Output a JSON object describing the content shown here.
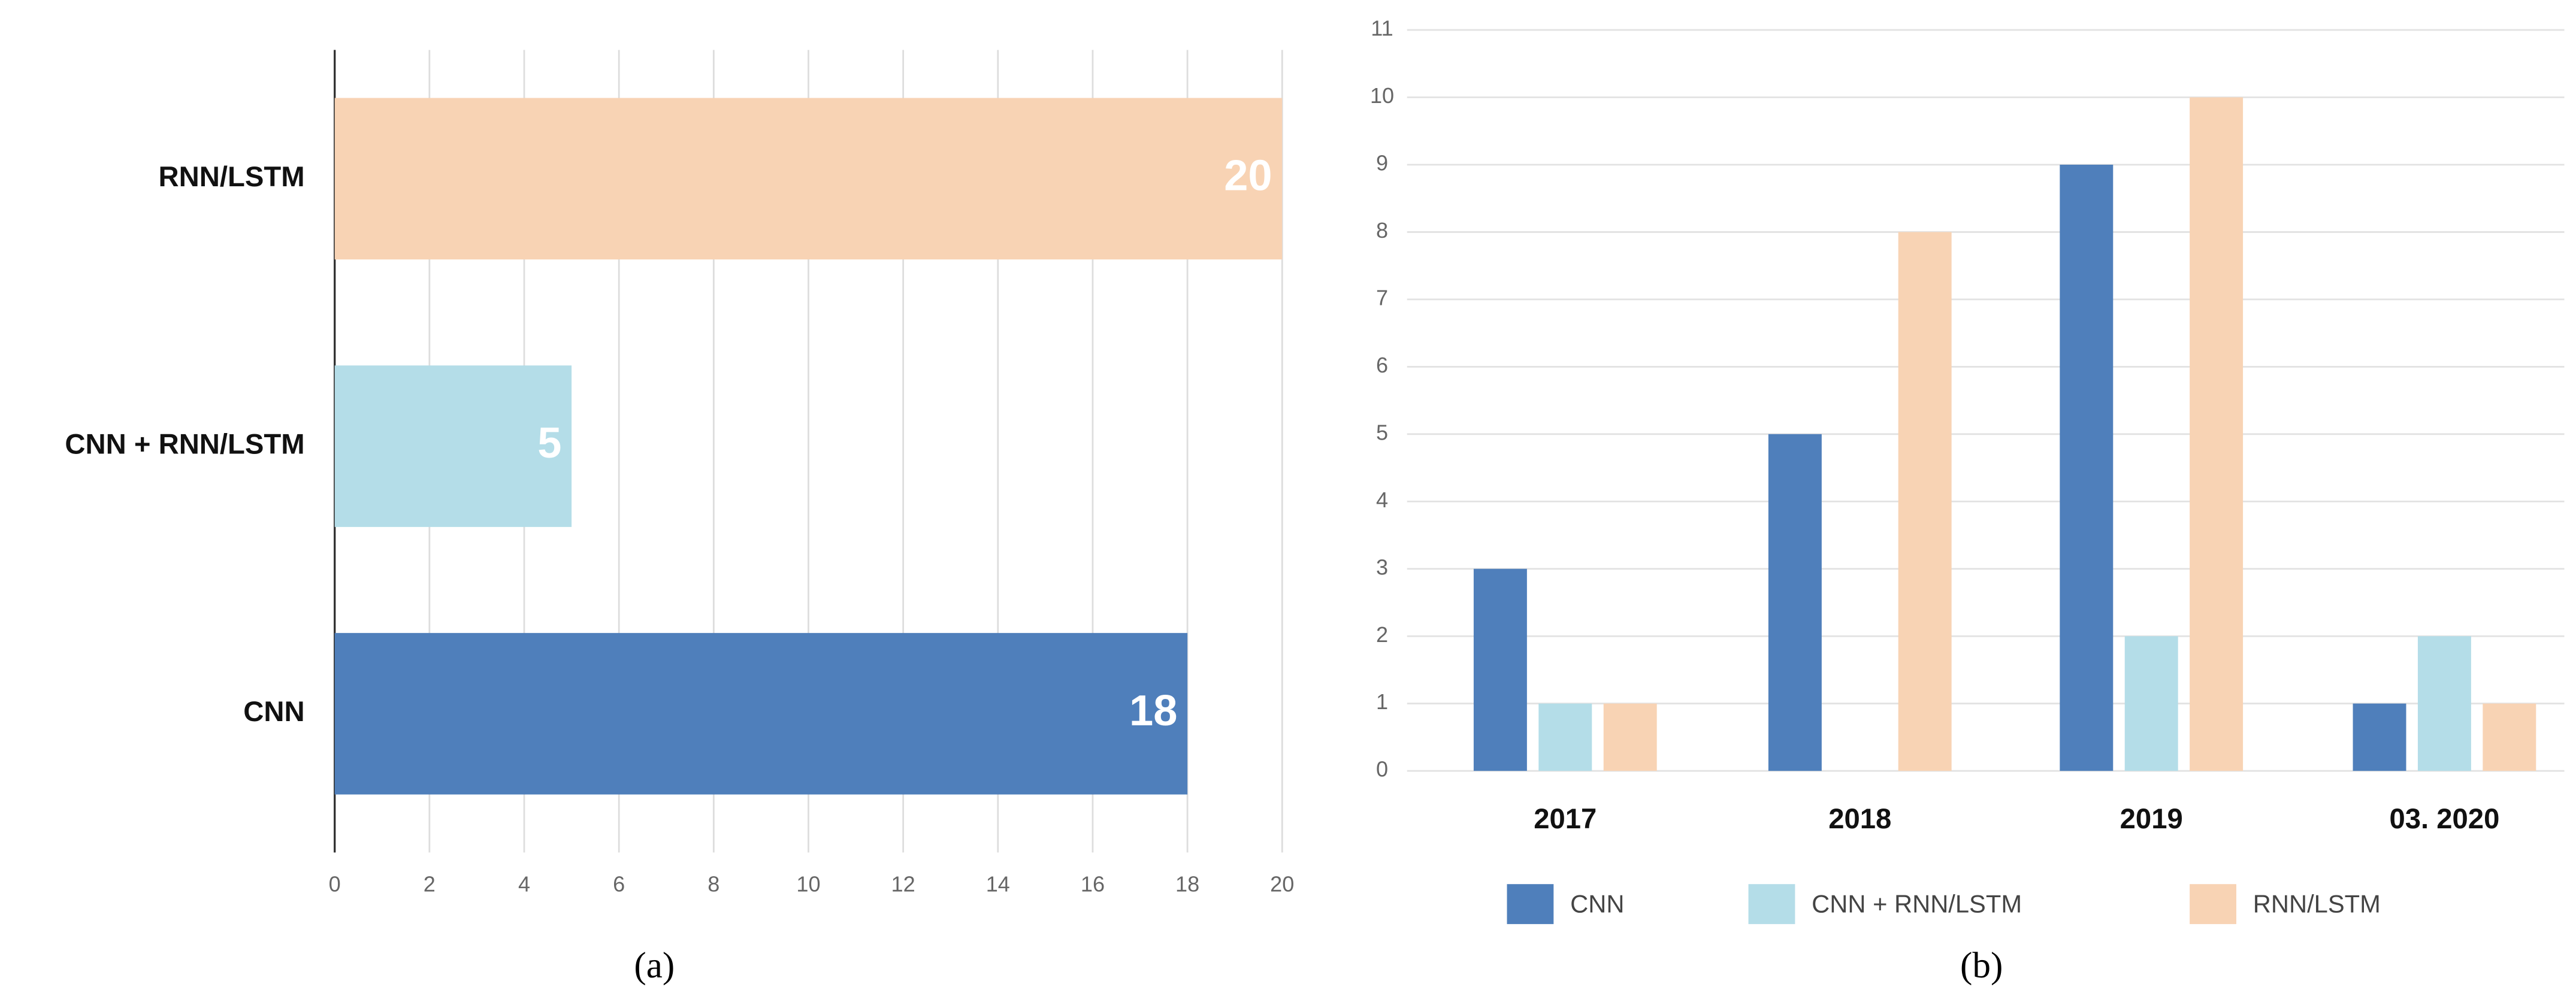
{
  "chart_data": [
    {
      "type": "bar",
      "orientation": "horizontal",
      "caption": "(a)",
      "categories": [
        "RNN/LSTM",
        "CNN + RNN/LSTM",
        "CNN"
      ],
      "values": [
        20,
        5,
        18
      ],
      "colors": [
        "#f8d3b4",
        "#b4dde8",
        "#4f7fbb"
      ],
      "xlim": [
        0,
        20
      ],
      "xticks": [
        0,
        2,
        4,
        6,
        8,
        10,
        12,
        14,
        16,
        18,
        20
      ],
      "grid": true
    },
    {
      "type": "bar",
      "caption": "(b)",
      "categories": [
        "2017",
        "2018",
        "2019",
        "03. 2020"
      ],
      "series": [
        {
          "name": "CNN",
          "color": "#4f7fbb",
          "values": [
            3,
            5,
            9,
            1
          ]
        },
        {
          "name": "CNN + RNN/LSTM",
          "color": "#b4dde8",
          "values": [
            1,
            0,
            2,
            2
          ]
        },
        {
          "name": "RNN/LSTM",
          "color": "#f8d3b4",
          "values": [
            1,
            8,
            10,
            1
          ]
        }
      ],
      "ylim": [
        0,
        11
      ],
      "yticks": [
        0,
        1,
        2,
        3,
        4,
        5,
        6,
        7,
        8,
        9,
        10,
        11
      ],
      "grid": true,
      "legend": "bottom"
    }
  ]
}
